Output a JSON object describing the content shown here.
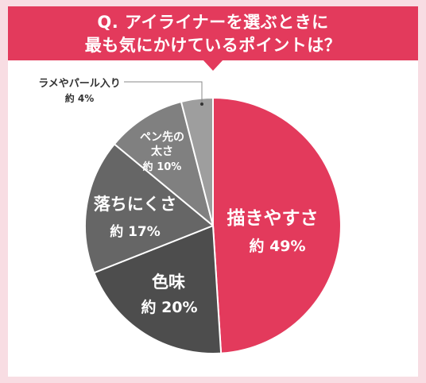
{
  "header": {
    "title_line_1": "Q. アイライナーを選ぶときに",
    "title_line_2": "最も気にかけているポイントは？"
  },
  "colors": {
    "background": "#f8dde3",
    "header": "#e33a5c",
    "slice_1": "#e33a5c",
    "slice_2": "#4d4d4d",
    "slice_3": "#666666",
    "slice_4": "#808080",
    "slice_5": "#9e9e9e"
  },
  "chart_data": {
    "type": "pie",
    "title": "Q. アイライナーを選ぶときに最も気にかけているポイントは？",
    "slices": [
      {
        "label": "描きやすさ",
        "value": 49,
        "value_label": "約 49%",
        "color": "#e33a5c"
      },
      {
        "label": "色味",
        "value": 20,
        "value_label": "約 20%",
        "color": "#4d4d4d"
      },
      {
        "label": "落ちにくさ",
        "value": 17,
        "value_label": "約 17%",
        "color": "#666666"
      },
      {
        "label": "ペン先の太さ",
        "value": 10,
        "value_label": "約 10%",
        "color": "#808080"
      },
      {
        "label": "ラメやパール入り",
        "value": 4,
        "value_label": "約 4%",
        "color": "#9e9e9e"
      }
    ]
  }
}
